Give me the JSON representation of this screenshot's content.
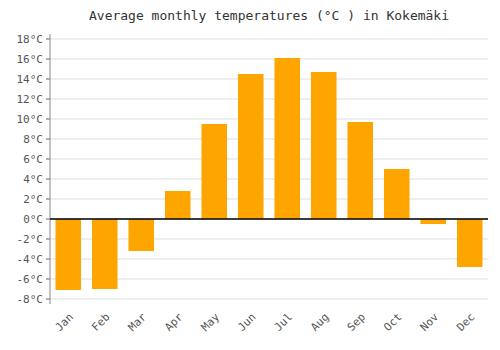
{
  "chart_data": {
    "type": "bar",
    "title": "Average monthly temperatures (°C ) in Kokemäki",
    "categories": [
      "Jan",
      "Feb",
      "Mar",
      "Apr",
      "May",
      "Jun",
      "Jul",
      "Aug",
      "Sep",
      "Oct",
      "Nov",
      "Dec"
    ],
    "values": [
      -7.1,
      -7.0,
      -3.2,
      2.8,
      9.5,
      14.5,
      16.1,
      14.7,
      9.7,
      5.0,
      -0.5,
      -4.8
    ],
    "color": "#FFA500",
    "ylim": [
      -8.5,
      18.5
    ],
    "yticks": [
      {
        "value": -8,
        "label": "-8°C"
      },
      {
        "value": -6,
        "label": "-6°C"
      },
      {
        "value": -4,
        "label": "-4°C"
      },
      {
        "value": -2,
        "label": "-2°C"
      },
      {
        "value": 0,
        "label": "0°C"
      },
      {
        "value": 2,
        "label": "2°C"
      },
      {
        "value": 4,
        "label": "4°C"
      },
      {
        "value": 6,
        "label": "6°C"
      },
      {
        "value": 8,
        "label": "8°C"
      },
      {
        "value": 10,
        "label": "10°C"
      },
      {
        "value": 12,
        "label": "12°C"
      },
      {
        "value": 14,
        "label": "14°C"
      },
      {
        "value": 16,
        "label": "16°C"
      },
      {
        "value": 18,
        "label": "18°C"
      }
    ],
    "grid": true
  }
}
